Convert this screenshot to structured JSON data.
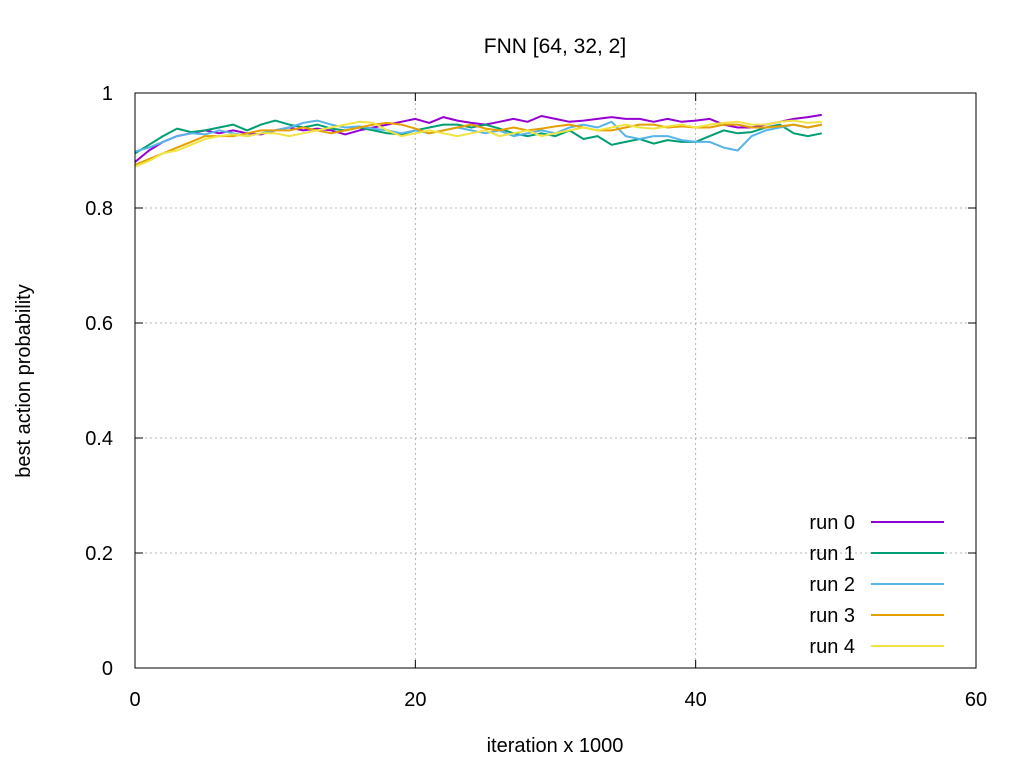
{
  "chart_data": {
    "type": "line",
    "title": "FNN [64, 32, 2]",
    "xlabel": "iteration x 1000",
    "ylabel": "best action probability",
    "xlim": [
      0,
      60
    ],
    "ylim": [
      0,
      1
    ],
    "xticks": [
      0,
      20,
      40,
      60
    ],
    "yticks": [
      0,
      0.2,
      0.4,
      0.6,
      0.8,
      1
    ],
    "xtick_labels": [
      "0",
      "20",
      "40",
      "60"
    ],
    "ytick_labels": [
      "0",
      "0.2",
      "0.4",
      "0.6",
      "0.8",
      "1"
    ],
    "grid": true,
    "legend_position": "bottom-right",
    "x": [
      0,
      1,
      2,
      3,
      4,
      5,
      6,
      7,
      8,
      9,
      10,
      11,
      12,
      13,
      14,
      15,
      16,
      17,
      18,
      19,
      20,
      21,
      22,
      23,
      24,
      25,
      26,
      27,
      28,
      29,
      30,
      31,
      32,
      33,
      34,
      35,
      36,
      37,
      38,
      39,
      40,
      41,
      42,
      43,
      44,
      45,
      46,
      47,
      48,
      49
    ],
    "series": [
      {
        "name": "run 0",
        "color": "#9400d3",
        "values": [
          0.88,
          0.9,
          0.915,
          0.925,
          0.93,
          0.935,
          0.93,
          0.935,
          0.93,
          0.928,
          0.935,
          0.94,
          0.935,
          0.938,
          0.935,
          0.928,
          0.935,
          0.94,
          0.945,
          0.95,
          0.955,
          0.948,
          0.958,
          0.952,
          0.948,
          0.945,
          0.95,
          0.955,
          0.95,
          0.96,
          0.955,
          0.95,
          0.952,
          0.955,
          0.958,
          0.955,
          0.955,
          0.95,
          0.955,
          0.95,
          0.952,
          0.955,
          0.945,
          0.94,
          0.94,
          0.945,
          0.95,
          0.955,
          0.958,
          0.962
        ]
      },
      {
        "name": "run 1",
        "color": "#009e73",
        "values": [
          0.895,
          0.91,
          0.925,
          0.938,
          0.932,
          0.935,
          0.94,
          0.945,
          0.935,
          0.945,
          0.952,
          0.945,
          0.94,
          0.945,
          0.938,
          0.935,
          0.94,
          0.935,
          0.93,
          0.928,
          0.935,
          0.94,
          0.945,
          0.945,
          0.94,
          0.945,
          0.938,
          0.93,
          0.925,
          0.93,
          0.925,
          0.935,
          0.92,
          0.925,
          0.91,
          0.915,
          0.92,
          0.912,
          0.918,
          0.915,
          0.915,
          0.925,
          0.935,
          0.93,
          0.932,
          0.94,
          0.945,
          0.93,
          0.925,
          0.93
        ]
      },
      {
        "name": "run 2",
        "color": "#56b4e9",
        "values": [
          0.898,
          0.905,
          0.915,
          0.925,
          0.93,
          0.928,
          0.935,
          0.93,
          0.925,
          0.93,
          0.935,
          0.94,
          0.948,
          0.952,
          0.945,
          0.94,
          0.942,
          0.938,
          0.935,
          0.93,
          0.935,
          0.93,
          0.935,
          0.94,
          0.935,
          0.93,
          0.935,
          0.925,
          0.93,
          0.935,
          0.93,
          0.94,
          0.945,
          0.94,
          0.95,
          0.925,
          0.92,
          0.925,
          0.925,
          0.918,
          0.915,
          0.915,
          0.905,
          0.9,
          0.925,
          0.935,
          0.94,
          0.945,
          0.94,
          0.945
        ]
      },
      {
        "name": "run 3",
        "color": "#e69f00",
        "values": [
          0.875,
          0.885,
          0.895,
          0.905,
          0.915,
          0.925,
          0.925,
          0.925,
          0.93,
          0.935,
          0.935,
          0.935,
          0.94,
          0.935,
          0.93,
          0.935,
          0.94,
          0.945,
          0.948,
          0.945,
          0.938,
          0.93,
          0.935,
          0.94,
          0.945,
          0.938,
          0.935,
          0.94,
          0.935,
          0.938,
          0.942,
          0.945,
          0.94,
          0.935,
          0.935,
          0.94,
          0.945,
          0.945,
          0.94,
          0.942,
          0.94,
          0.94,
          0.945,
          0.945,
          0.94,
          0.94,
          0.942,
          0.945,
          0.94,
          0.945
        ]
      },
      {
        "name": "run 4",
        "color": "#f0e442",
        "values": [
          0.872,
          0.882,
          0.895,
          0.9,
          0.91,
          0.92,
          0.925,
          0.928,
          0.925,
          0.93,
          0.93,
          0.925,
          0.93,
          0.935,
          0.94,
          0.945,
          0.95,
          0.948,
          0.935,
          0.925,
          0.93,
          0.935,
          0.93,
          0.925,
          0.93,
          0.935,
          0.925,
          0.93,
          0.935,
          0.925,
          0.93,
          0.935,
          0.94,
          0.935,
          0.94,
          0.945,
          0.94,
          0.938,
          0.942,
          0.945,
          0.94,
          0.945,
          0.948,
          0.95,
          0.945,
          0.945,
          0.95,
          0.952,
          0.948,
          0.95
        ]
      }
    ]
  }
}
